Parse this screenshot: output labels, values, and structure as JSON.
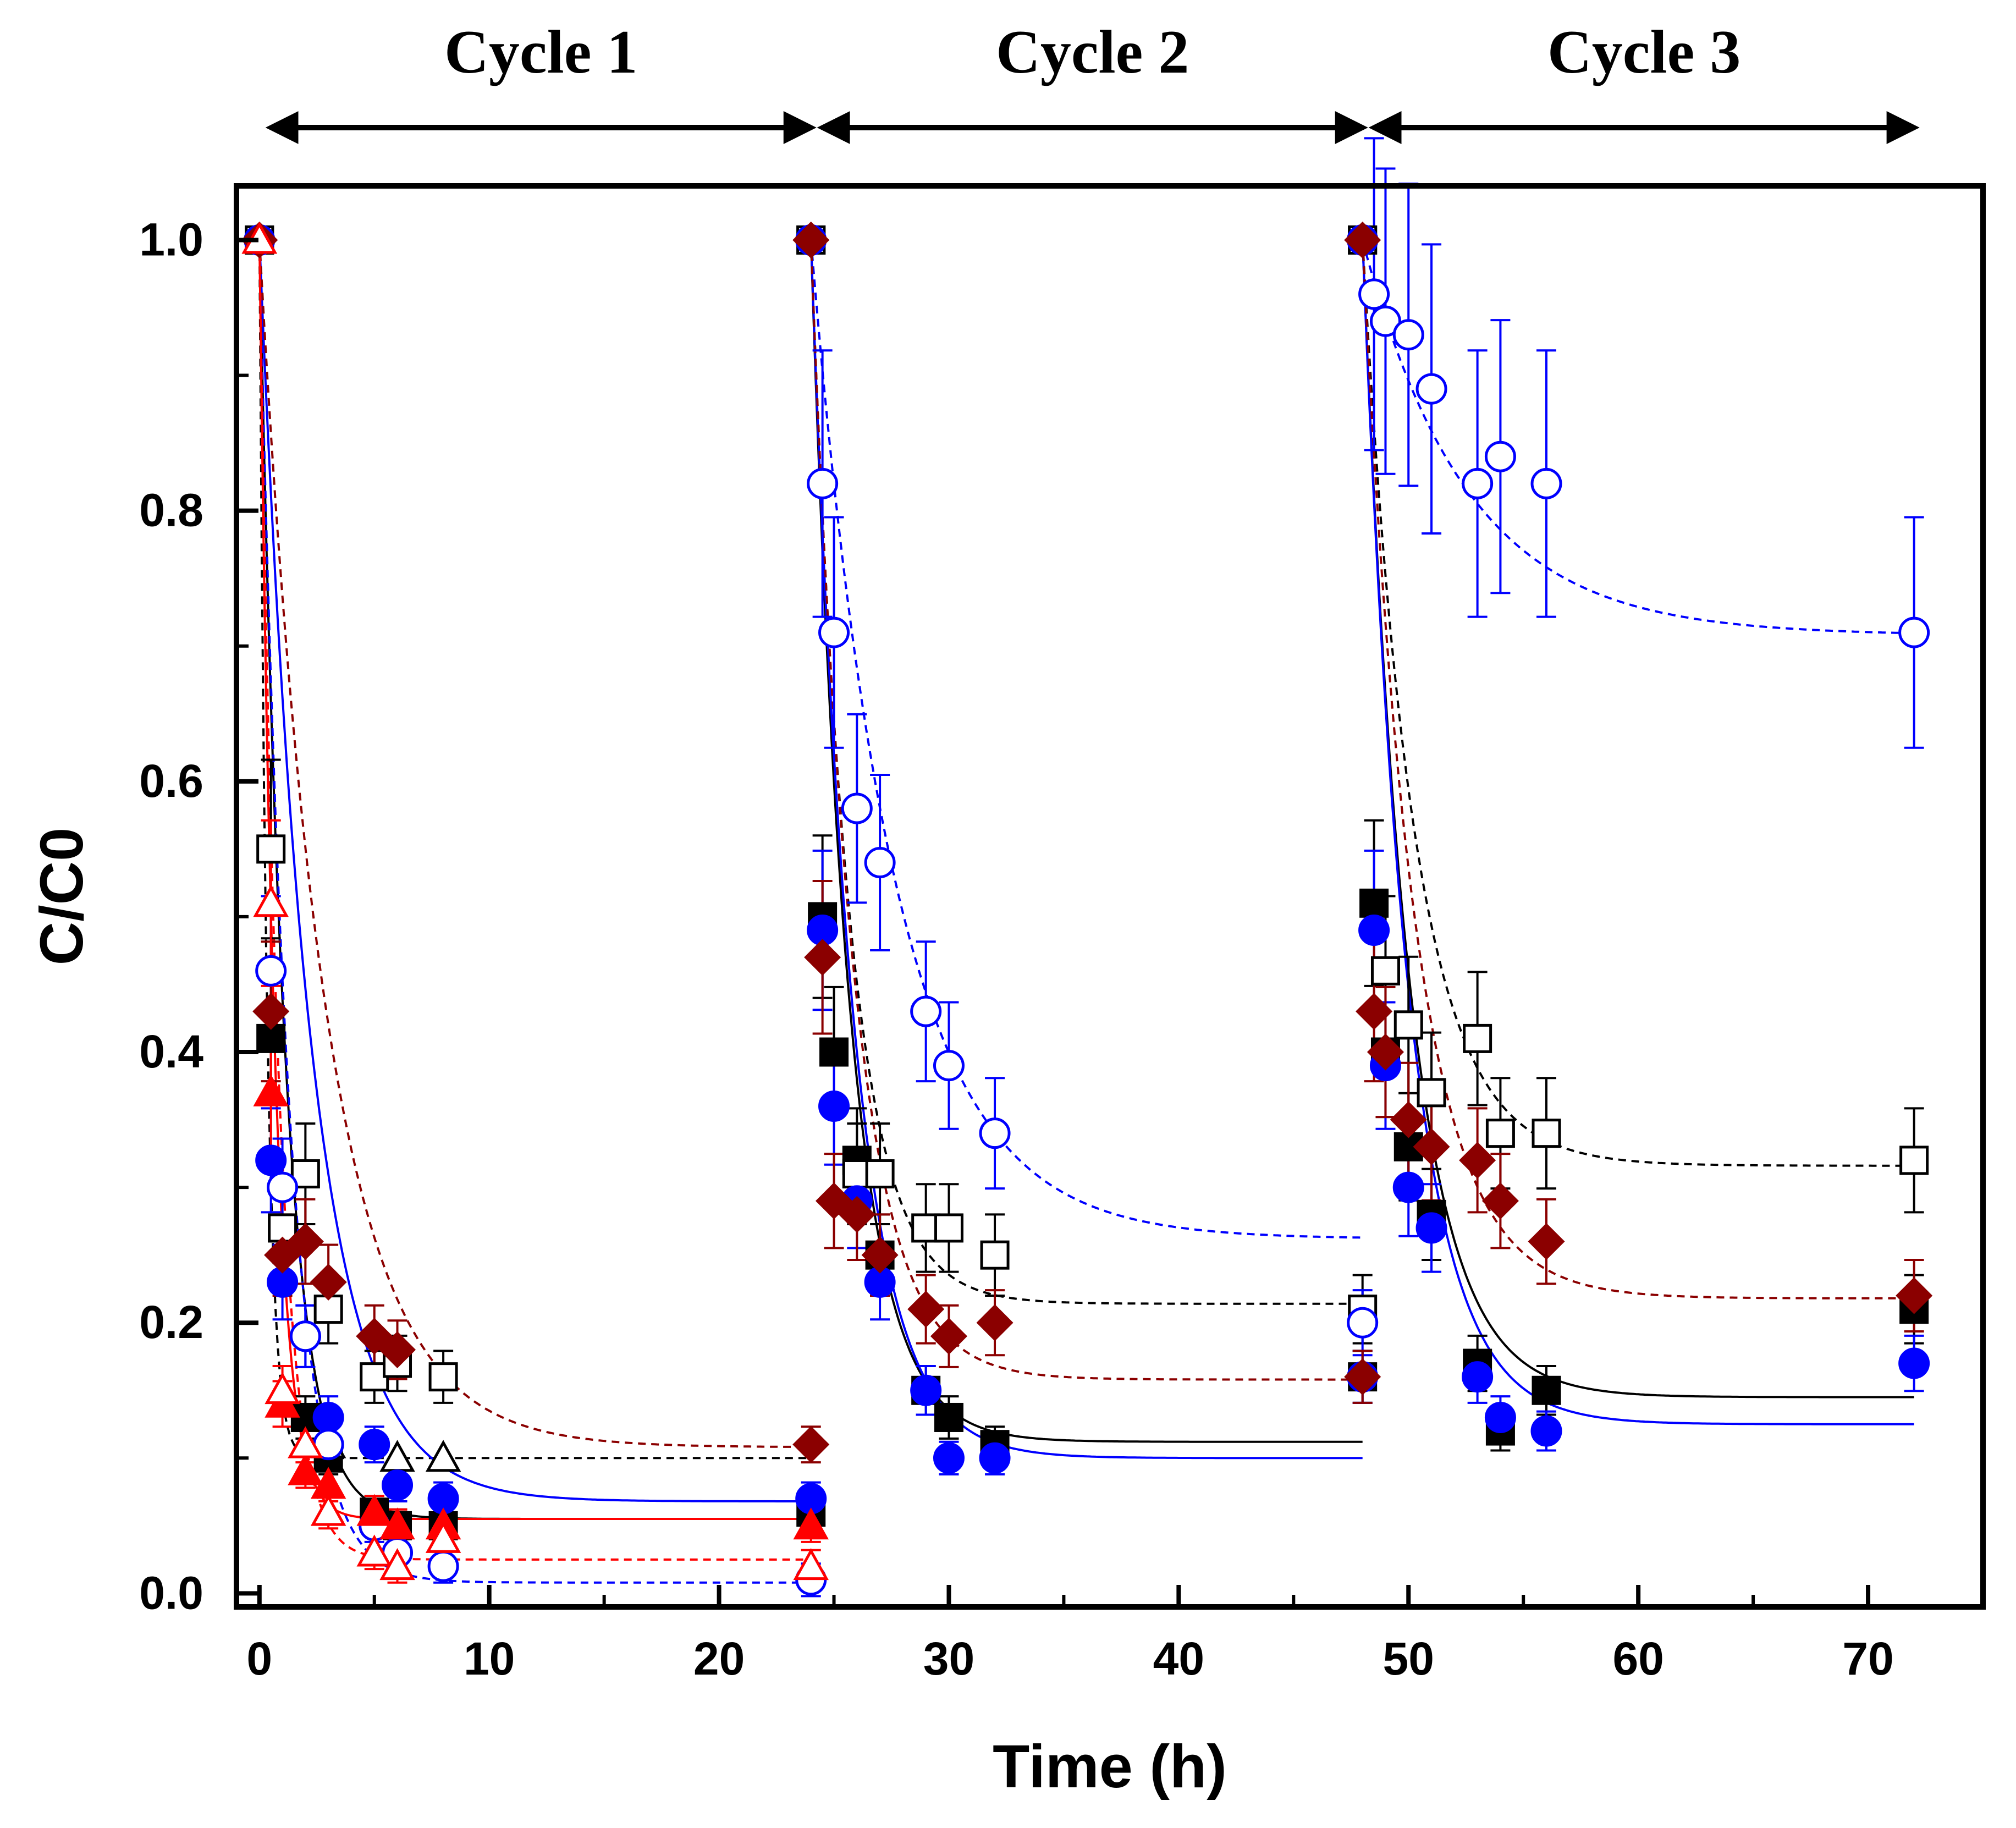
{
  "chart_data": {
    "type": "scatter",
    "xlabel": "Time (h)",
    "ylabel": "C/C0",
    "xlim": [
      -1,
      75
    ],
    "ylim": [
      -0.01,
      1.04
    ],
    "xticks": [
      0,
      10,
      20,
      30,
      40,
      50,
      60,
      70
    ],
    "xtick_labels": [
      "0",
      "10",
      "20",
      "30",
      "40",
      "50",
      "60",
      "70"
    ],
    "yticks": [
      0.0,
      0.2,
      0.4,
      0.6,
      0.8,
      1.0
    ],
    "ytick_labels": [
      "0.0",
      "0.2",
      "0.4",
      "0.6",
      "0.8",
      "1.0"
    ],
    "cycles": [
      {
        "label": "Cycle 1",
        "start": 0.5,
        "end": 24
      },
      {
        "label": "Cycle 2",
        "start": 24.5,
        "end": 48
      },
      {
        "label": "Cycle 3",
        "start": 48.5,
        "end": 72
      }
    ],
    "series": [
      {
        "name": "black filled square",
        "marker": "square",
        "filled": true,
        "color": "#000000",
        "fit_style": "solid",
        "points": [
          [
            0,
            1.0
          ],
          [
            0.5,
            0.41
          ],
          [
            2,
            0.13
          ],
          [
            3,
            0.1
          ],
          [
            5,
            0.06
          ],
          [
            6,
            0.05
          ],
          [
            8,
            0.05
          ],
          [
            24,
            0.06
          ],
          [
            24,
            1.0
          ],
          [
            24.5,
            0.5
          ],
          [
            25,
            0.4
          ],
          [
            26,
            0.32
          ],
          [
            27,
            0.25
          ],
          [
            29,
            0.15
          ],
          [
            30,
            0.13
          ],
          [
            32,
            0.11
          ],
          [
            48,
            0.16
          ],
          [
            48,
            1.0
          ],
          [
            48.5,
            0.51
          ],
          [
            49,
            0.4
          ],
          [
            50,
            0.33
          ],
          [
            51,
            0.28
          ],
          [
            53,
            0.17
          ],
          [
            54,
            0.12
          ],
          [
            56,
            0.15
          ],
          [
            72,
            0.21
          ]
        ],
        "fits": [
          {
            "t0": 0,
            "t1": 24,
            "plateau": 0.055,
            "k": 0.9
          },
          {
            "t0": 24,
            "t1": 48,
            "plateau": 0.112,
            "k": 0.6
          },
          {
            "t0": 48,
            "t1": 72,
            "plateau": 0.145,
            "k": 0.5
          }
        ]
      },
      {
        "name": "black open square",
        "marker": "square",
        "filled": false,
        "color": "#000000",
        "fit_style": "dashed",
        "points": [
          [
            0,
            1.0
          ],
          [
            0.5,
            0.55
          ],
          [
            1,
            0.27
          ],
          [
            2,
            0.31
          ],
          [
            3,
            0.21
          ],
          [
            5,
            0.16
          ],
          [
            6,
            0.17
          ],
          [
            8,
            0.16
          ],
          [
            24,
            1.0
          ],
          [
            26,
            0.31
          ],
          [
            27,
            0.31
          ],
          [
            29,
            0.27
          ],
          [
            30,
            0.27
          ],
          [
            32,
            0.25
          ],
          [
            48,
            0.21
          ],
          [
            48,
            1.0
          ],
          [
            49,
            0.46
          ],
          [
            50,
            0.42
          ],
          [
            51,
            0.37
          ],
          [
            53,
            0.41
          ],
          [
            54,
            0.34
          ],
          [
            56,
            0.34
          ],
          [
            72,
            0.32
          ]
        ],
        "fits": [
          {
            "t0": 0,
            "t1": 24,
            "plateau": 0.1,
            "k": 3.0
          },
          {
            "t0": 24,
            "t1": 48,
            "plateau": 0.214,
            "k": 0.6
          },
          {
            "t0": 48,
            "t1": 72,
            "plateau": 0.316,
            "k": 0.45
          }
        ]
      },
      {
        "name": "black open triangle",
        "marker": "triangle",
        "filled": false,
        "color": "#000000",
        "fit_style": "none",
        "points": [
          [
            3,
            0.11
          ],
          [
            6,
            0.1
          ],
          [
            8,
            0.1
          ]
        ],
        "fits": []
      },
      {
        "name": "blue filled circle",
        "marker": "circle",
        "filled": true,
        "color": "#0000ff",
        "fit_style": "solid",
        "points": [
          [
            0,
            1.0
          ],
          [
            0.5,
            0.32
          ],
          [
            1,
            0.23
          ],
          [
            2,
            0.19
          ],
          [
            3,
            0.13
          ],
          [
            5,
            0.11
          ],
          [
            6,
            0.08
          ],
          [
            8,
            0.07
          ],
          [
            24,
            0.07
          ],
          [
            24,
            1.0
          ],
          [
            24.5,
            0.49
          ],
          [
            25,
            0.36
          ],
          [
            26,
            0.29
          ],
          [
            27,
            0.23
          ],
          [
            29,
            0.15
          ],
          [
            30,
            0.1
          ],
          [
            32,
            0.1
          ],
          [
            48,
            0.16
          ],
          [
            48,
            1.0
          ],
          [
            48.5,
            0.49
          ],
          [
            49,
            0.39
          ],
          [
            50,
            0.3
          ],
          [
            51,
            0.27
          ],
          [
            53,
            0.16
          ],
          [
            54,
            0.13
          ],
          [
            56,
            0.12
          ],
          [
            72,
            0.17
          ]
        ],
        "fits": [
          {
            "t0": 0,
            "t1": 24,
            "plateau": 0.068,
            "k": 0.45
          },
          {
            "t0": 24,
            "t1": 48,
            "plateau": 0.1,
            "k": 0.55
          },
          {
            "t0": 48,
            "t1": 72,
            "plateau": 0.125,
            "k": 0.5
          }
        ]
      },
      {
        "name": "blue open circle",
        "marker": "circle",
        "filled": false,
        "color": "#0000ff",
        "fit_style": "dashed",
        "points": [
          [
            0,
            1.0
          ],
          [
            0.5,
            0.46
          ],
          [
            1,
            0.3
          ],
          [
            2,
            0.19
          ],
          [
            3,
            0.11
          ],
          [
            5,
            0.05
          ],
          [
            6,
            0.03
          ],
          [
            8,
            0.02
          ],
          [
            24,
            0.01
          ],
          [
            24,
            1.0
          ],
          [
            24.5,
            0.82
          ],
          [
            25,
            0.71
          ],
          [
            26,
            0.58
          ],
          [
            27,
            0.54
          ],
          [
            29,
            0.43
          ],
          [
            30,
            0.39
          ],
          [
            32,
            0.34
          ],
          [
            48,
            0.2
          ],
          [
            48,
            1.0
          ],
          [
            48.5,
            0.96
          ],
          [
            49,
            0.94
          ],
          [
            50,
            0.93
          ],
          [
            51,
            0.89
          ],
          [
            53,
            0.82
          ],
          [
            54,
            0.84
          ],
          [
            56,
            0.82
          ],
          [
            72,
            0.71
          ]
        ],
        "fits": [
          {
            "t0": 0,
            "t1": 24,
            "plateau": 0.008,
            "k": 0.8
          },
          {
            "t0": 24,
            "t1": 48,
            "plateau": 0.262,
            "k": 0.28
          },
          {
            "t0": 48,
            "t1": 72,
            "plateau": 0.708,
            "k": 0.22
          }
        ]
      },
      {
        "name": "dark red filled diamond",
        "marker": "diamond",
        "filled": true,
        "color": "#8b0000",
        "fit_style": "dashed",
        "points": [
          [
            0,
            1.0
          ],
          [
            0.5,
            0.43
          ],
          [
            1,
            0.25
          ],
          [
            2,
            0.26
          ],
          [
            3,
            0.23
          ],
          [
            5,
            0.19
          ],
          [
            6,
            0.18
          ],
          [
            24,
            0.11
          ],
          [
            24,
            1.0
          ],
          [
            24.5,
            0.47
          ],
          [
            25,
            0.29
          ],
          [
            26,
            0.28
          ],
          [
            27,
            0.25
          ],
          [
            29,
            0.21
          ],
          [
            30,
            0.19
          ],
          [
            32,
            0.2
          ],
          [
            48,
            0.16
          ],
          [
            48,
            1.0
          ],
          [
            48.5,
            0.43
          ],
          [
            49,
            0.4
          ],
          [
            50,
            0.35
          ],
          [
            51,
            0.33
          ],
          [
            53,
            0.32
          ],
          [
            54,
            0.29
          ],
          [
            56,
            0.26
          ],
          [
            72,
            0.22
          ]
        ],
        "fits": [
          {
            "t0": 0,
            "t1": 24,
            "plateau": 0.108,
            "k": 0.35
          },
          {
            "t0": 24,
            "t1": 48,
            "plateau": 0.158,
            "k": 0.55
          },
          {
            "t0": 48,
            "t1": 72,
            "plateau": 0.218,
            "k": 0.45
          }
        ]
      },
      {
        "name": "red filled triangle",
        "marker": "triangle",
        "filled": true,
        "color": "#ff0000",
        "fit_style": "solid",
        "points": [
          [
            0,
            1.0
          ],
          [
            0.5,
            0.37
          ],
          [
            1,
            0.14
          ],
          [
            2,
            0.09
          ],
          [
            3,
            0.08
          ],
          [
            5,
            0.06
          ],
          [
            6,
            0.05
          ],
          [
            8,
            0.05
          ],
          [
            24,
            0.05
          ]
        ],
        "fits": [
          {
            "t0": 0,
            "t1": 24,
            "plateau": 0.055,
            "k": 1.5
          }
        ]
      },
      {
        "name": "red open triangle",
        "marker": "triangle",
        "filled": false,
        "color": "#ff0000",
        "fit_style": "dashed",
        "points": [
          [
            0,
            1.0
          ],
          [
            0.5,
            0.51
          ],
          [
            1,
            0.15
          ],
          [
            2,
            0.11
          ],
          [
            3,
            0.06
          ],
          [
            5,
            0.03
          ],
          [
            6,
            0.02
          ],
          [
            8,
            0.04
          ],
          [
            24,
            0.02
          ]
        ],
        "fits": [
          {
            "t0": 0,
            "t1": 24,
            "plateau": 0.025,
            "k": 1.2
          }
        ]
      }
    ]
  }
}
